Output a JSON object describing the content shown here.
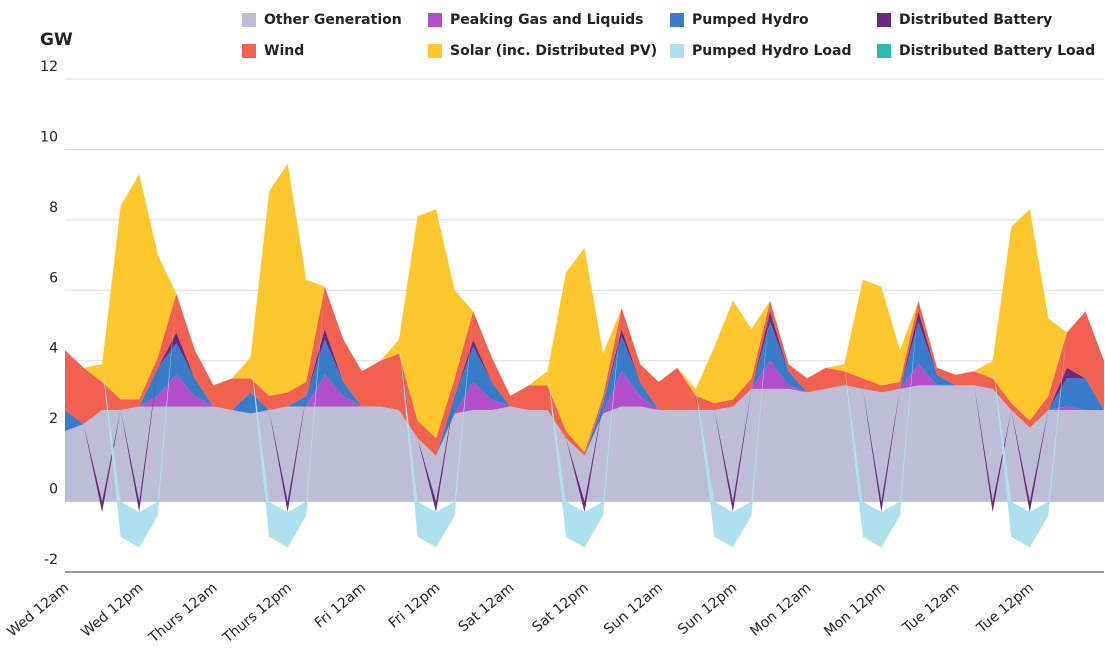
{
  "chart_data": {
    "type": "stacked_area",
    "y_label": "GW",
    "categories": [
      "Wed 12am",
      null,
      null,
      null,
      "Wed 12pm",
      null,
      null,
      null,
      "Thurs 12am",
      null,
      null,
      null,
      "Thurs 12pm",
      null,
      null,
      null,
      "Fri 12am",
      null,
      null,
      null,
      "Fri 12pm",
      null,
      null,
      null,
      "Sat 12am",
      null,
      null,
      null,
      "Sat 12pm",
      null,
      null,
      null,
      "Sun 12am",
      null,
      null,
      null,
      "Sun 12pm",
      null,
      null,
      null,
      "Mon 12am",
      null,
      null,
      null,
      "Mon 12pm",
      null,
      null,
      null,
      "Tue 12am",
      null,
      null,
      null,
      "Tue 12pm",
      null,
      null,
      null,
      null
    ],
    "series": [
      {
        "name": "Other Generation",
        "color": "#bdbdd5",
        "values": [
          2.0,
          2.2,
          2.6,
          2.6,
          2.7,
          2.7,
          2.7,
          2.7,
          2.7,
          2.6,
          2.5,
          2.6,
          2.7,
          2.7,
          2.7,
          2.7,
          2.7,
          2.7,
          2.6,
          1.8,
          1.3,
          2.5,
          2.6,
          2.6,
          2.7,
          2.6,
          2.6,
          1.8,
          1.3,
          2.5,
          2.7,
          2.7,
          2.6,
          2.6,
          2.6,
          2.6,
          2.7,
          3.2,
          3.2,
          3.2,
          3.1,
          3.2,
          3.3,
          3.2,
          3.1,
          3.2,
          3.3,
          3.3,
          3.3,
          3.3,
          3.2,
          2.6,
          2.1,
          2.6,
          2.6,
          2.6,
          2.6
        ]
      },
      {
        "name": "Peaking Gas and Liquids",
        "color": "#b24fc9",
        "values": [
          0,
          0,
          0,
          0,
          0,
          0.3,
          0.9,
          0.3,
          0,
          0,
          0,
          0,
          0,
          0,
          0.9,
          0.3,
          0,
          0,
          0,
          0,
          0,
          0,
          0.8,
          0.3,
          0,
          0,
          0,
          0,
          0,
          0,
          1.0,
          0.3,
          0,
          0,
          0,
          0,
          0,
          0,
          0.8,
          0.1,
          0,
          0,
          0,
          0,
          0,
          0,
          0.6,
          0,
          0,
          0,
          0,
          0,
          0,
          0,
          0.1,
          0,
          0
        ]
      },
      {
        "name": "Pumped Hydro",
        "color": "#3a7cc9",
        "values": [
          0.6,
          0,
          0,
          0,
          0,
          0.8,
          0.9,
          0.5,
          0,
          0,
          0.6,
          0,
          0,
          0.3,
          1.0,
          0.4,
          0,
          0,
          0,
          0,
          0,
          0.5,
          1.0,
          0.5,
          0,
          0,
          0,
          0,
          0,
          0.3,
          1.0,
          0.4,
          0,
          0,
          0,
          0,
          0,
          0,
          1.1,
          0.4,
          0,
          0,
          0,
          0,
          0,
          0,
          1.2,
          0.3,
          0,
          0,
          0,
          0,
          0,
          0,
          0.8,
          0.9,
          0
        ]
      },
      {
        "name": "Distributed Battery",
        "color": "#6a2a7c",
        "values": [
          0,
          0,
          -0.3,
          0,
          -0.3,
          0,
          0.3,
          0,
          0,
          0,
          0,
          0,
          -0.3,
          0,
          0.3,
          0,
          0,
          0,
          0,
          0,
          -0.3,
          0,
          0.2,
          0,
          0,
          0,
          0,
          0,
          -0.3,
          0,
          0.2,
          0,
          0,
          0,
          0,
          0,
          -0.3,
          0,
          0.3,
          0,
          0,
          0,
          0,
          0,
          -0.3,
          0,
          0.3,
          0,
          0,
          0,
          -0.3,
          0,
          -0.3,
          0,
          0.3,
          0,
          0
        ]
      },
      {
        "name": "Wind",
        "color": "#f2604f",
        "values": [
          1.7,
          1.6,
          0.8,
          0.3,
          0.2,
          0.3,
          1.1,
          0.8,
          0.6,
          0.9,
          0.4,
          0.4,
          0.4,
          0.4,
          1.2,
          1.2,
          1.0,
          1.3,
          1.6,
          0.5,
          0.5,
          0.5,
          0.8,
          0.7,
          0.3,
          0.7,
          0.7,
          0.2,
          0.1,
          0.2,
          0.6,
          0.5,
          0.8,
          1.2,
          0.4,
          0.2,
          0.2,
          0.3,
          0.3,
          0.2,
          0.4,
          0.6,
          0.4,
          0.3,
          0.2,
          0.2,
          0.3,
          0.2,
          0.3,
          0.4,
          0.3,
          0.2,
          0.2,
          0.4,
          1.0,
          1.9,
          1.4
        ]
      },
      {
        "name": "Solar (inc. Distributed PV)",
        "color": "#ffc72e",
        "values": [
          0,
          0,
          0.5,
          5.5,
          6.4,
          2.9,
          0,
          0,
          0,
          0,
          0.6,
          5.8,
          6.5,
          2.9,
          0,
          0,
          0,
          0,
          0.4,
          5.8,
          6.5,
          2.5,
          0,
          0,
          0,
          0,
          0.4,
          4.5,
          5.8,
          1.2,
          0,
          0,
          0,
          0,
          0.2,
          1.6,
          2.8,
          1.4,
          0,
          0,
          0,
          0,
          0.2,
          2.8,
          2.8,
          0.9,
          0,
          0,
          0,
          0,
          0.5,
          5.0,
          6.0,
          2.2,
          0,
          0,
          0
        ]
      },
      {
        "name": "Pumped Hydro Load",
        "color": "#aee1ed",
        "values": [
          0,
          0,
          0,
          -1.0,
          -1.0,
          -0.4,
          0,
          0,
          0,
          0,
          0,
          -1.0,
          -1.0,
          -0.4,
          0,
          0,
          0,
          0,
          0,
          -1.0,
          -1.0,
          -0.4,
          0,
          0,
          0,
          0,
          0,
          -1.0,
          -1.0,
          -0.4,
          0,
          0,
          0,
          0,
          0,
          -1.0,
          -1.0,
          -0.4,
          0,
          0,
          0,
          0,
          0,
          -1.0,
          -1.0,
          -0.4,
          0,
          0,
          0,
          0,
          0,
          -1.0,
          -1.0,
          -0.4,
          0,
          0,
          0
        ]
      },
      {
        "name": "Distributed Battery Load",
        "color": "#2cb9b0",
        "values": [
          0,
          0,
          0,
          0,
          0,
          0,
          0,
          0,
          0,
          0,
          0,
          0,
          0,
          0,
          0,
          0,
          0,
          0,
          0,
          0,
          0,
          0,
          0,
          0,
          0,
          0,
          0,
          0,
          0,
          0,
          0,
          0,
          0,
          0,
          0,
          0,
          0,
          0,
          0,
          0,
          0,
          0,
          0,
          0,
          0,
          0,
          0,
          0,
          0,
          0,
          0,
          0,
          0,
          0,
          0,
          0,
          0
        ]
      }
    ],
    "ylim": [
      -2,
      12
    ],
    "yticks": [
      -2,
      0,
      2,
      4,
      6,
      8,
      10,
      12
    ],
    "grid": true
  }
}
